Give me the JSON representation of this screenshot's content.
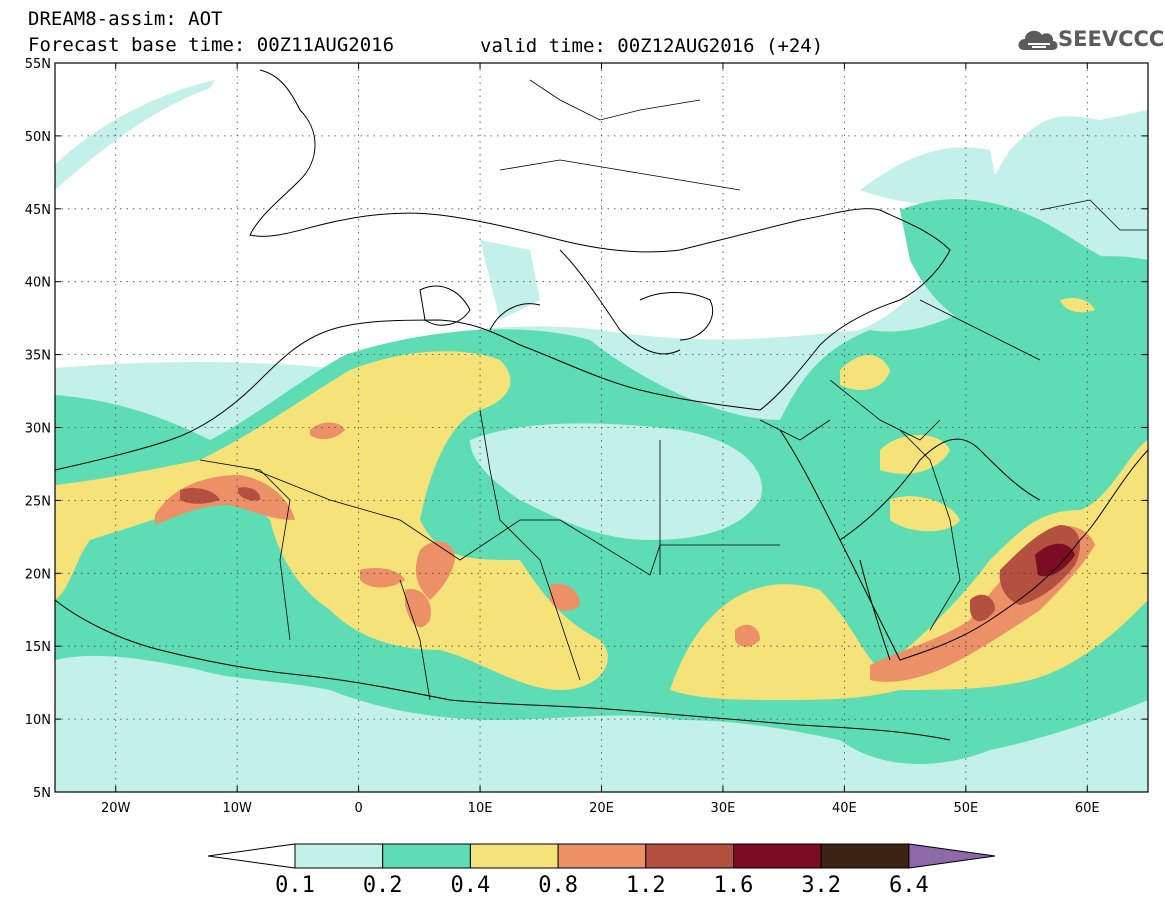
{
  "header": {
    "model_line": "DREAM8-assim: AOT",
    "base_time": "Forecast base time: 00Z11AUG2016",
    "valid_time": "valid time: 00Z12AUG2016 (+24)"
  },
  "logo": {
    "text": "SEEVCCC",
    "icon": "cloud-logo-icon",
    "color": "#5b5b5b"
  },
  "map": {
    "lon_range": [
      -25,
      65
    ],
    "lat_range": [
      5,
      55
    ],
    "lon_ticks": [
      {
        "lon": -20,
        "label": "20W"
      },
      {
        "lon": -10,
        "label": "10W"
      },
      {
        "lon": 0,
        "label": "0"
      },
      {
        "lon": 10,
        "label": "10E"
      },
      {
        "lon": 20,
        "label": "20E"
      },
      {
        "lon": 30,
        "label": "30E"
      },
      {
        "lon": 40,
        "label": "40E"
      },
      {
        "lon": 50,
        "label": "50E"
      },
      {
        "lon": 60,
        "label": "60E"
      }
    ],
    "lat_ticks": [
      {
        "lat": 5,
        "label": "5N"
      },
      {
        "lat": 10,
        "label": "10N"
      },
      {
        "lat": 15,
        "label": "15N"
      },
      {
        "lat": 20,
        "label": "20N"
      },
      {
        "lat": 25,
        "label": "25N"
      },
      {
        "lat": 30,
        "label": "30N"
      },
      {
        "lat": 35,
        "label": "35N"
      },
      {
        "lat": 40,
        "label": "40N"
      },
      {
        "lat": 45,
        "label": "45N"
      },
      {
        "lat": 50,
        "label": "50N"
      },
      {
        "lat": 55,
        "label": "55N"
      }
    ],
    "gridlines": "dotted"
  },
  "colorbar": {
    "bins": [
      {
        "color": "#c4f0ea"
      },
      {
        "color": "#5edcb4"
      },
      {
        "color": "#f5e37a"
      },
      {
        "color": "#ec9068"
      },
      {
        "color": "#b3503f"
      },
      {
        "color": "#7c0c22"
      },
      {
        "color": "#3d2314"
      }
    ],
    "under_color": "#ffffff",
    "over_color": "#8e68a8",
    "labels": [
      "0.1",
      "0.2",
      "0.4",
      "0.8",
      "1.2",
      "1.6",
      "3.2",
      "6.4"
    ]
  }
}
